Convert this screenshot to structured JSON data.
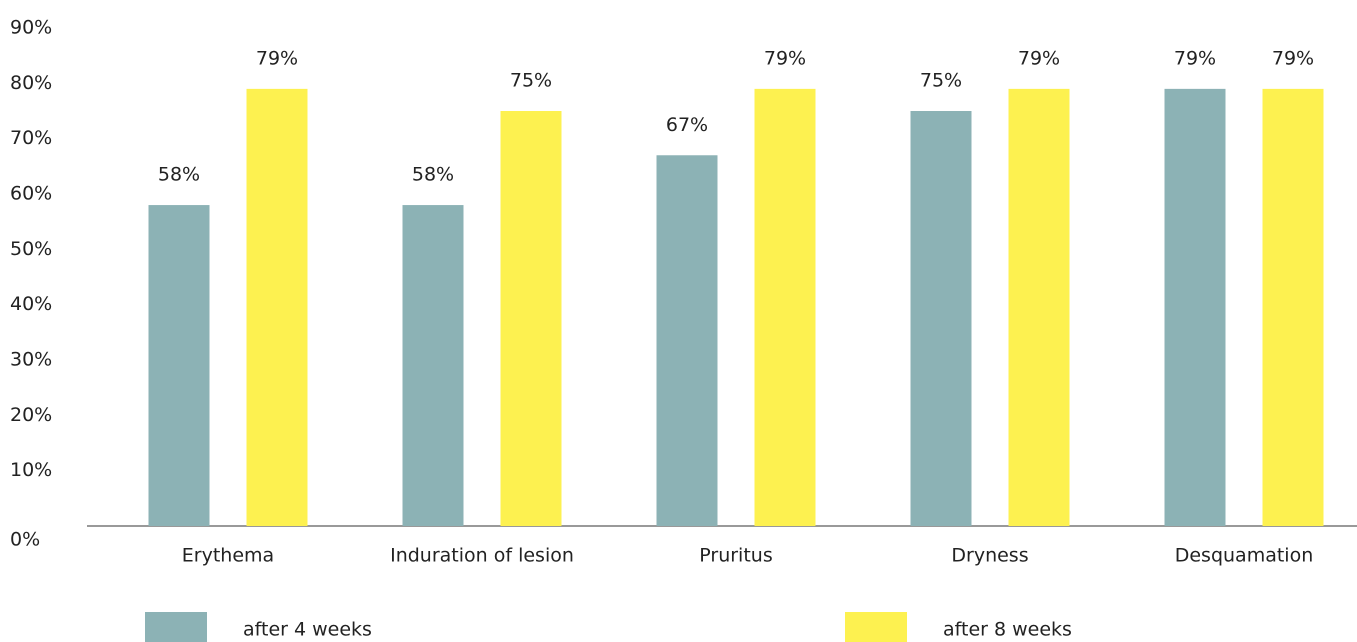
{
  "chart_data": {
    "type": "bar",
    "categories": [
      "Erythema",
      "Induration of lesion",
      "Pruritus",
      "Dryness",
      "Desquamation"
    ],
    "series": [
      {
        "name": "after 4 weeks",
        "color": "#8cb2b5",
        "values": [
          58,
          58,
          67,
          75,
          79
        ],
        "value_labels": [
          "58%",
          "58%",
          "67%",
          "75%",
          "79%"
        ]
      },
      {
        "name": "after 8 weeks",
        "color": "#fdf150",
        "values": [
          79,
          75,
          79,
          79,
          79
        ],
        "value_labels": [
          "79%",
          "75%",
          "79%",
          "79%",
          "79%"
        ]
      }
    ],
    "ylim": [
      0,
      90
    ],
    "yticks": [
      {
        "value": 0,
        "label": "0%"
      },
      {
        "value": 10,
        "label": "10%"
      },
      {
        "value": 20,
        "label": "20%"
      },
      {
        "value": 30,
        "label": "30%"
      },
      {
        "value": 40,
        "label": "40%"
      },
      {
        "value": 50,
        "label": "50%"
      },
      {
        "value": 60,
        "label": "60%"
      },
      {
        "value": 70,
        "label": "70%"
      },
      {
        "value": 80,
        "label": "80%"
      },
      {
        "value": 90,
        "label": "90%"
      }
    ],
    "grid": false
  }
}
